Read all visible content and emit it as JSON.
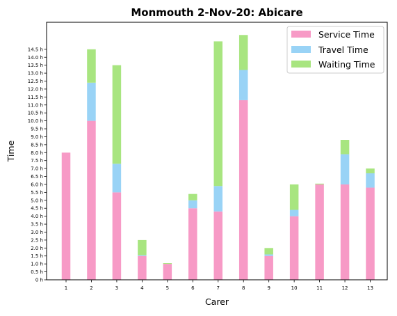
{
  "chart_data": {
    "type": "bar",
    "stacked": true,
    "title": "Monmouth 2-Nov-20: Abicare",
    "xlabel": "Carer",
    "ylabel": "Time",
    "categories": [
      "1",
      "2",
      "3",
      "4",
      "5",
      "6",
      "7",
      "8",
      "9",
      "10",
      "11",
      "12",
      "13"
    ],
    "ylim": [
      0,
      16.2
    ],
    "yticks": [
      "0 h",
      "0.5 h",
      "1.0 h",
      "1.5 h",
      "2.0 h",
      "2.5 h",
      "3.0 h",
      "3.5 h",
      "4.0 h",
      "4.5 h",
      "5.0 h",
      "5.5 h",
      "6.0 h",
      "6.5 h",
      "7.0 h",
      "7.5 h",
      "8.0 h",
      "8.5 h",
      "9.0 h",
      "9.5 h",
      "10.0 h",
      "10.5 h",
      "11.0 h",
      "11.5 h",
      "12.0 h",
      "12.5 h",
      "13.0 h",
      "13.5 h",
      "14.0 h",
      "14.5 h"
    ],
    "legend_position": "top-right",
    "series": [
      {
        "name": "Service Time",
        "color": "#f79ac6",
        "values": [
          8.0,
          10.0,
          5.5,
          1.5,
          1.0,
          4.5,
          4.3,
          11.3,
          1.5,
          4.0,
          6.0,
          6.0,
          5.8
        ]
      },
      {
        "name": "Travel Time",
        "color": "#99d3f6",
        "values": [
          0,
          2.4,
          1.8,
          0.05,
          0,
          0.5,
          1.6,
          1.9,
          0.1,
          0.4,
          0,
          1.9,
          0.9
        ]
      },
      {
        "name": "Waiting Time",
        "color": "#a8e580",
        "values": [
          0,
          2.1,
          6.2,
          0.95,
          0.05,
          0.4,
          9.1,
          2.2,
          0.4,
          1.6,
          0.05,
          0.9,
          0.3
        ]
      }
    ]
  }
}
